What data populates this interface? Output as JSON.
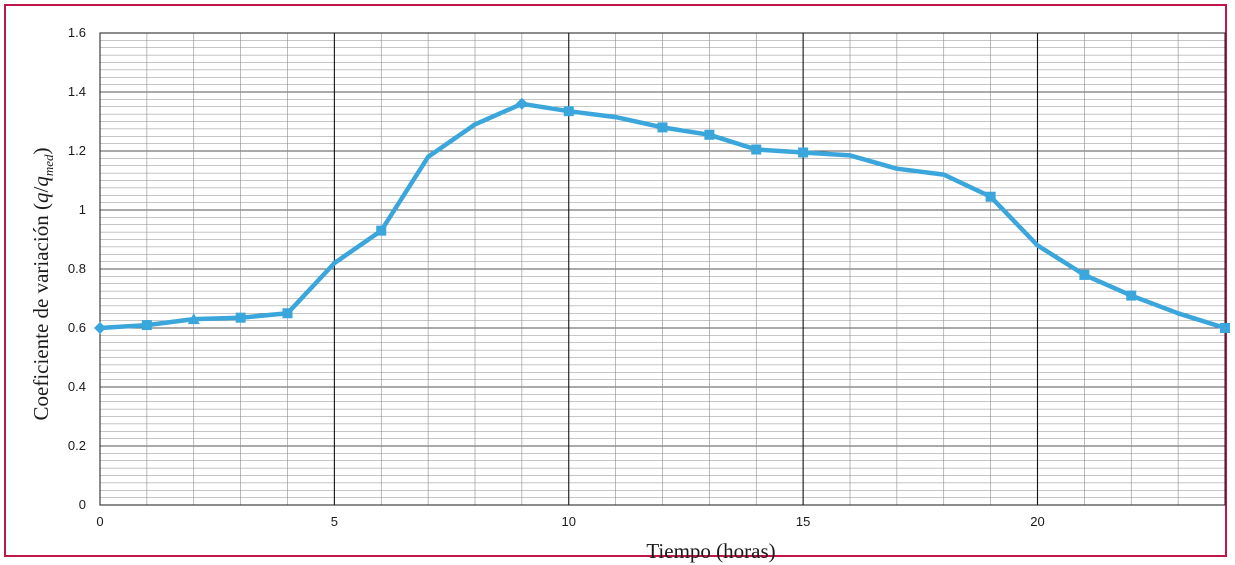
{
  "chart_data": {
    "type": "line",
    "xlabel": "Tiempo (horas)",
    "ylabel": {
      "prefix": "Coeficiente de variación (",
      "q1": "q",
      "slash": "/",
      "q2": "q",
      "sub": "med",
      "suffix": ")"
    },
    "xlim": [
      0,
      24
    ],
    "ylim": [
      0,
      1.6
    ],
    "x_ticks": [
      0,
      5,
      10,
      15,
      20
    ],
    "y_ticks": [
      0,
      0.2,
      0.4,
      0.6,
      0.8,
      1,
      1.2,
      1.4,
      1.6
    ],
    "x_tick_labels": [
      "0",
      "5",
      "10",
      "15",
      "20"
    ],
    "y_tick_labels": [
      "0",
      "0.2",
      "0.4",
      "0.6",
      "0.8",
      "1",
      "1.2",
      "1.4",
      "1.6"
    ],
    "grid": true,
    "series": [
      {
        "color": "#3aa6dc",
        "x": [
          0,
          1,
          2,
          3,
          4,
          5,
          6,
          7,
          8,
          9,
          10,
          11,
          12,
          13,
          14,
          15,
          16,
          17,
          18,
          19,
          20,
          21,
          22,
          23,
          24
        ],
        "y": [
          0.6,
          0.61,
          0.63,
          0.635,
          0.65,
          0.82,
          0.93,
          1.18,
          1.29,
          1.36,
          1.335,
          1.315,
          1.28,
          1.255,
          1.205,
          1.195,
          1.185,
          1.14,
          1.12,
          1.045,
          0.88,
          0.78,
          0.71,
          0.65,
          0.6
        ],
        "markers": [
          "diamond",
          "square",
          "triangle",
          "square",
          "square",
          "none",
          "square",
          "none",
          "none",
          "diamond",
          "square",
          "none",
          "square",
          "square",
          "square",
          "square",
          "none",
          "none",
          "none",
          "square",
          "none",
          "square",
          "square",
          "none",
          "square"
        ]
      }
    ]
  }
}
